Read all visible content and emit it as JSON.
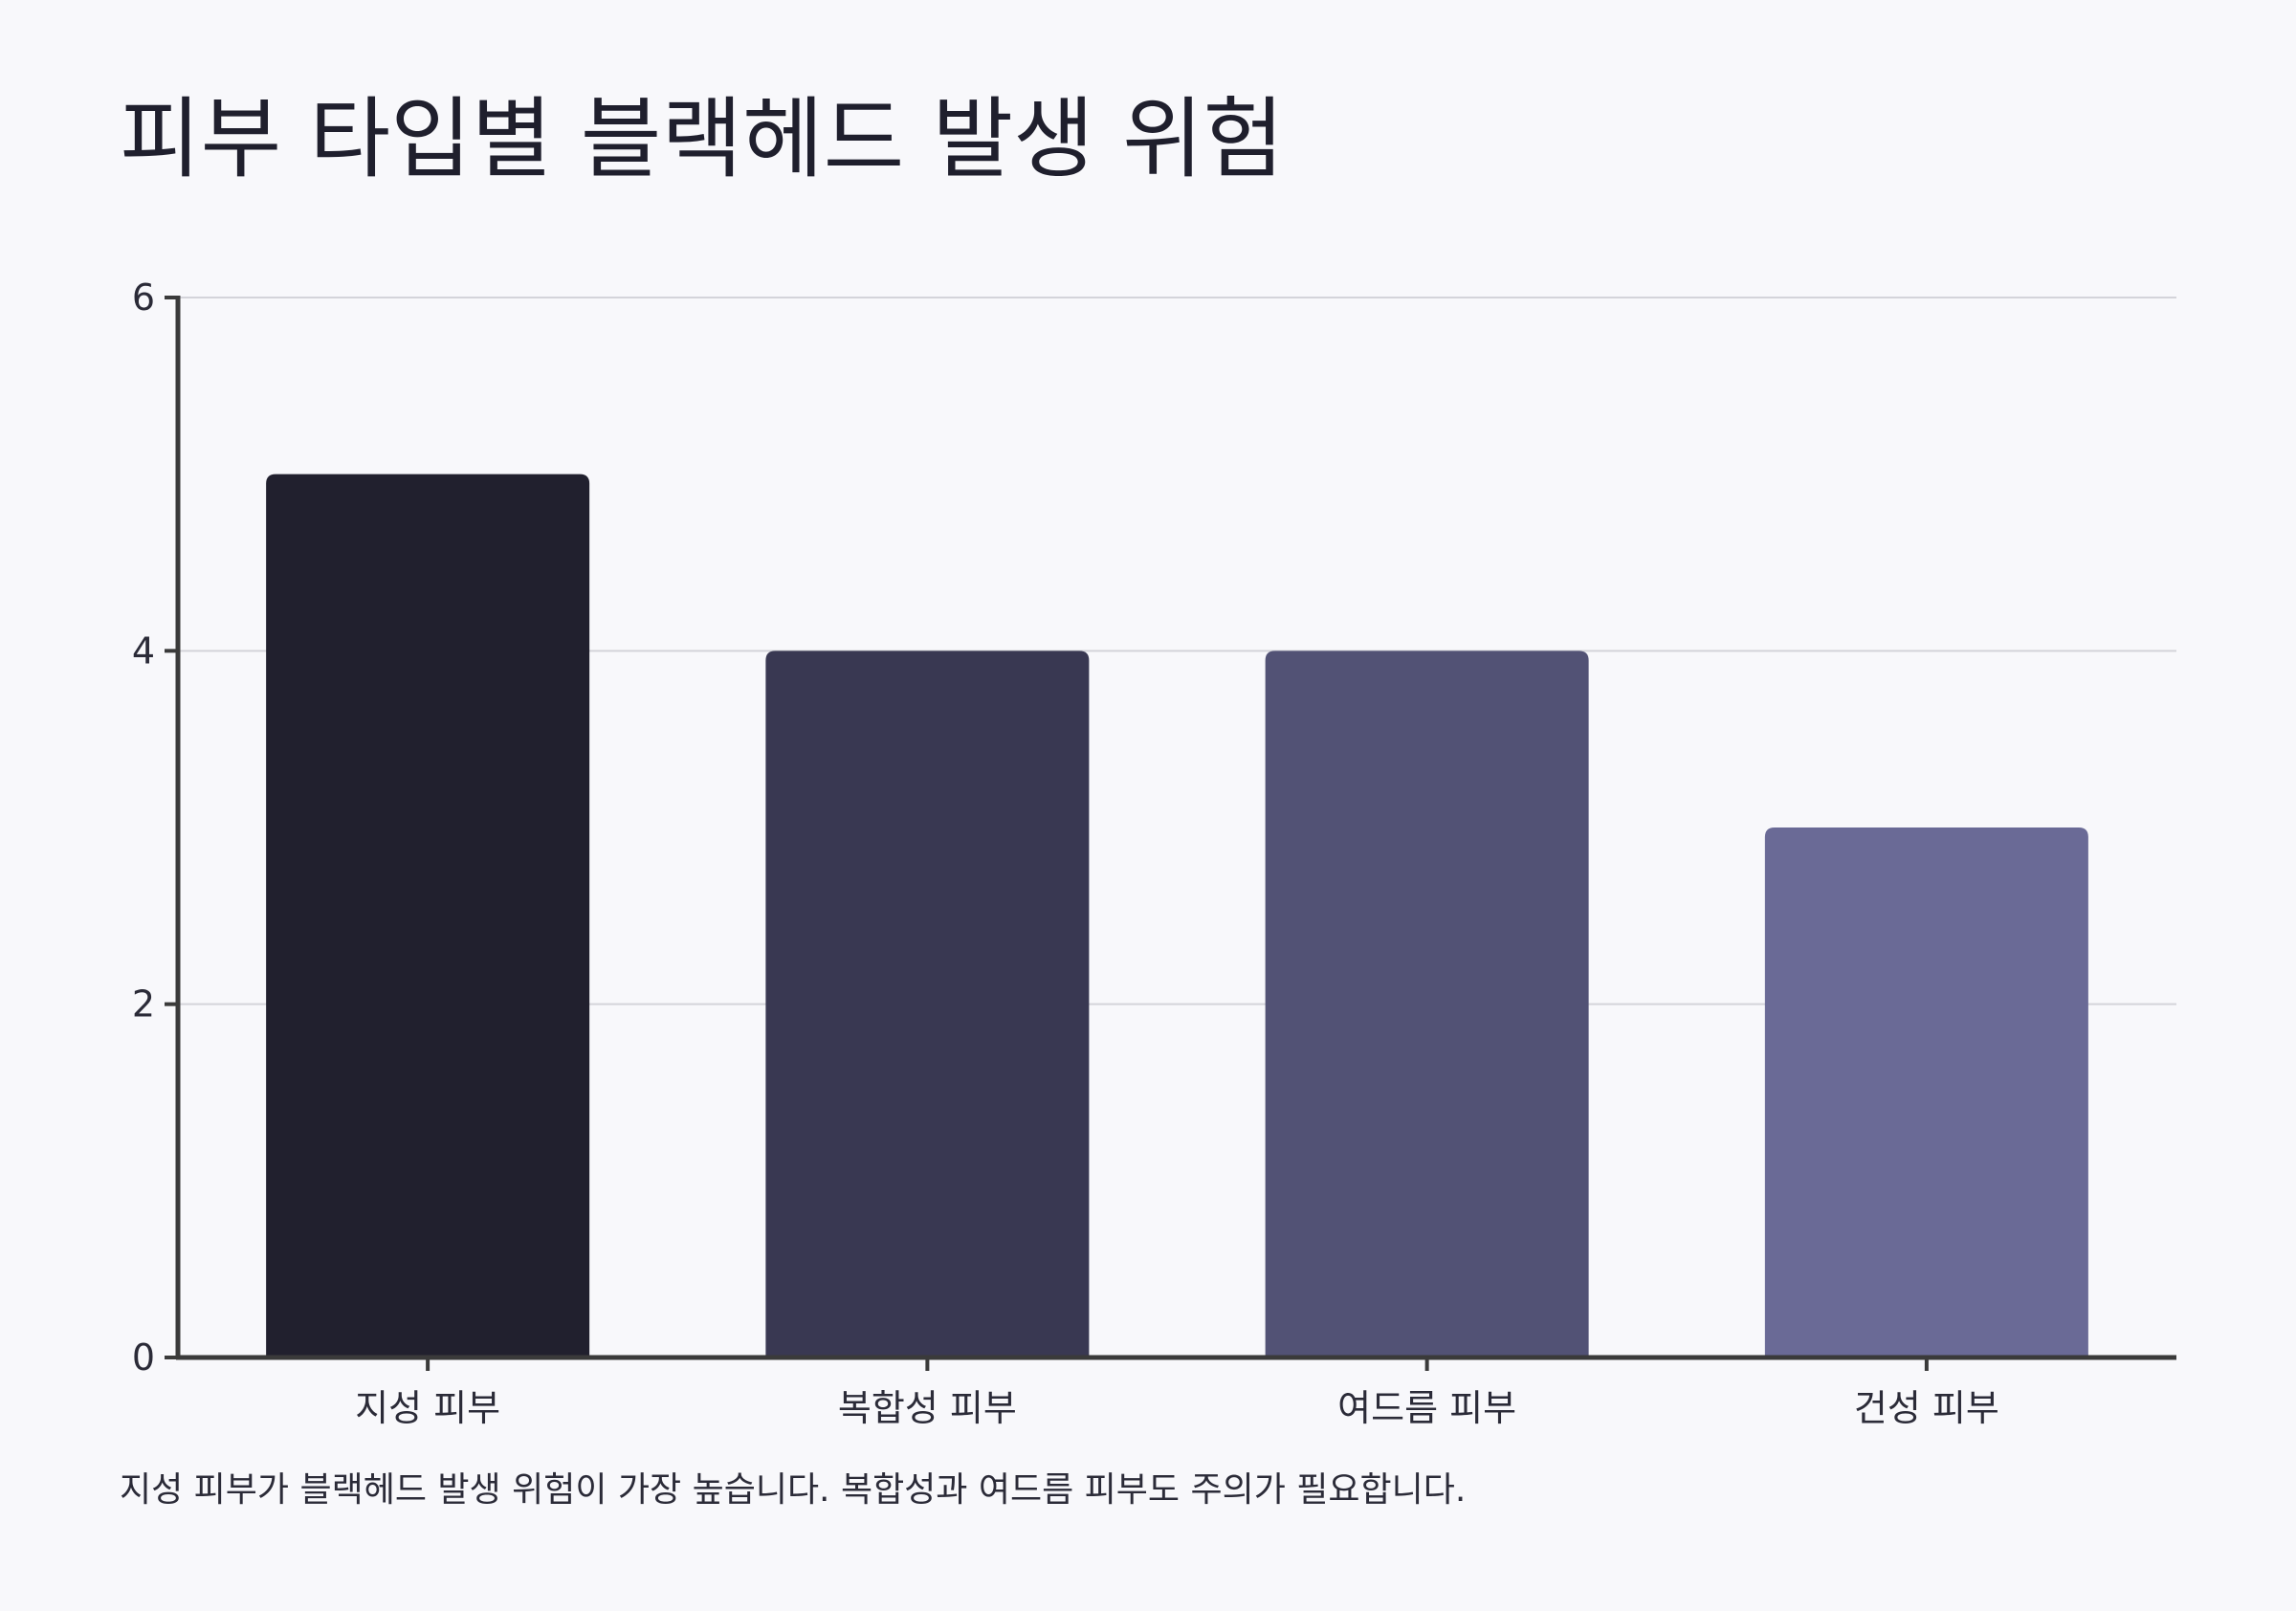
{
  "title": "피부 타입별 블랙헤드 발생 위험",
  "footnote": "지성 피부가 블랙헤드 발생 위험이 가장 높습니다. 복합성과 여드름 피부도 주의가 필요합니다.",
  "chart_data": {
    "type": "bar",
    "title": "피부 타입별 블랙헤드 발생 위험",
    "xlabel": "",
    "ylabel": "",
    "categories": [
      "지성 피부",
      "복합성 피부",
      "여드름 피부",
      "건성 피부"
    ],
    "values": [
      5,
      4,
      4,
      3
    ],
    "ylim": [
      0,
      6
    ],
    "yticks": [
      0,
      2,
      4,
      6
    ],
    "grid": true,
    "colors": [
      "#21202e",
      "#393852",
      "#525275",
      "#6a6a96"
    ]
  }
}
